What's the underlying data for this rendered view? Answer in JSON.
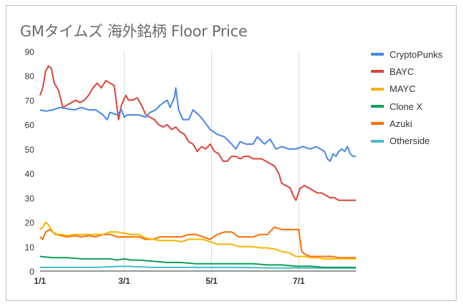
{
  "chart_data": {
    "type": "line",
    "title": "GMタイムズ 海外銘柄 Floor Price",
    "xlabel": "",
    "ylabel": "",
    "ylim": [
      0,
      90
    ],
    "y_ticks": [
      0,
      10,
      20,
      30,
      40,
      50,
      60,
      70,
      80,
      90
    ],
    "x_ticks": [
      "1/1",
      "3/1",
      "5/1",
      "7/1"
    ],
    "x_domain_days": [
      1,
      222
    ],
    "grid": "vertical lines at month ticks",
    "legend_position": "right",
    "series": [
      {
        "name": "CryptoPunks",
        "color": "#4a86e8",
        "points": [
          [
            1,
            66
          ],
          [
            5,
            65.5
          ],
          [
            10,
            66
          ],
          [
            15,
            67
          ],
          [
            20,
            66.5
          ],
          [
            25,
            66
          ],
          [
            30,
            67
          ],
          [
            35,
            66
          ],
          [
            40,
            66
          ],
          [
            45,
            64
          ],
          [
            48,
            62
          ],
          [
            50,
            65
          ],
          [
            55,
            64
          ],
          [
            58,
            66
          ],
          [
            60,
            63
          ],
          [
            62,
            64
          ],
          [
            66,
            64
          ],
          [
            70,
            64
          ],
          [
            75,
            63
          ],
          [
            78,
            65
          ],
          [
            82,
            66
          ],
          [
            85,
            68
          ],
          [
            90,
            70
          ],
          [
            92,
            67
          ],
          [
            95,
            71
          ],
          [
            96,
            75
          ],
          [
            98,
            66
          ],
          [
            101,
            62
          ],
          [
            105,
            62
          ],
          [
            108,
            66
          ],
          [
            112,
            64
          ],
          [
            115,
            62
          ],
          [
            120,
            58
          ],
          [
            125,
            56
          ],
          [
            130,
            55
          ],
          [
            135,
            52
          ],
          [
            138,
            50
          ],
          [
            141,
            53
          ],
          [
            145,
            52
          ],
          [
            150,
            52
          ],
          [
            153,
            55
          ],
          [
            158,
            52
          ],
          [
            162,
            54
          ],
          [
            166,
            50
          ],
          [
            170,
            51
          ],
          [
            175,
            50
          ],
          [
            180,
            50
          ],
          [
            185,
            51
          ],
          [
            190,
            50
          ],
          [
            194,
            51
          ],
          [
            200,
            49
          ],
          [
            202,
            46
          ],
          [
            204,
            45
          ],
          [
            206,
            48
          ],
          [
            208,
            47
          ],
          [
            210,
            49
          ],
          [
            212,
            50
          ],
          [
            214,
            49
          ],
          [
            216,
            51
          ],
          [
            218,
            48
          ],
          [
            220,
            47
          ],
          [
            222,
            47
          ]
        ]
      },
      {
        "name": "BAYC",
        "color": "#db4437",
        "points": [
          [
            1,
            72
          ],
          [
            3,
            75
          ],
          [
            5,
            82
          ],
          [
            7,
            84
          ],
          [
            9,
            83
          ],
          [
            11,
            77
          ],
          [
            14,
            74
          ],
          [
            17,
            67
          ],
          [
            20,
            68
          ],
          [
            23,
            69
          ],
          [
            26,
            70
          ],
          [
            29,
            69
          ],
          [
            32,
            70
          ],
          [
            35,
            72
          ],
          [
            38,
            75
          ],
          [
            41,
            77
          ],
          [
            44,
            75
          ],
          [
            47,
            78
          ],
          [
            50,
            77
          ],
          [
            53,
            76
          ],
          [
            56,
            62
          ],
          [
            58,
            68
          ],
          [
            61,
            72
          ],
          [
            63,
            70
          ],
          [
            66,
            70
          ],
          [
            69,
            71
          ],
          [
            72,
            68
          ],
          [
            75,
            64
          ],
          [
            78,
            63
          ],
          [
            81,
            62
          ],
          [
            84,
            60
          ],
          [
            87,
            59
          ],
          [
            90,
            60
          ],
          [
            93,
            58
          ],
          [
            96,
            59
          ],
          [
            99,
            57
          ],
          [
            102,
            56
          ],
          [
            105,
            53
          ],
          [
            108,
            52
          ],
          [
            111,
            49
          ],
          [
            114,
            51
          ],
          [
            117,
            50
          ],
          [
            120,
            52
          ],
          [
            123,
            49
          ],
          [
            126,
            48
          ],
          [
            129,
            45
          ],
          [
            132,
            45
          ],
          [
            135,
            47
          ],
          [
            138,
            47
          ],
          [
            141,
            46
          ],
          [
            144,
            47
          ],
          [
            147,
            47
          ],
          [
            150,
            46
          ],
          [
            153,
            46
          ],
          [
            156,
            46
          ],
          [
            159,
            45
          ],
          [
            162,
            44
          ],
          [
            165,
            43
          ],
          [
            168,
            40
          ],
          [
            170,
            36
          ],
          [
            173,
            35
          ],
          [
            176,
            34
          ],
          [
            178,
            31
          ],
          [
            180,
            29
          ],
          [
            183,
            34
          ],
          [
            186,
            35
          ],
          [
            189,
            34
          ],
          [
            192,
            33
          ],
          [
            195,
            32
          ],
          [
            198,
            32
          ],
          [
            201,
            31
          ],
          [
            204,
            30
          ],
          [
            207,
            30
          ],
          [
            210,
            29
          ],
          [
            213,
            29
          ],
          [
            216,
            29
          ],
          [
            219,
            29
          ],
          [
            222,
            29
          ]
        ]
      },
      {
        "name": "MAYC",
        "color": "#f4b400",
        "points": [
          [
            1,
            17
          ],
          [
            3,
            18
          ],
          [
            5,
            20
          ],
          [
            7,
            19
          ],
          [
            10,
            16
          ],
          [
            13,
            15
          ],
          [
            16,
            15
          ],
          [
            20,
            14.5
          ],
          [
            25,
            15
          ],
          [
            30,
            15
          ],
          [
            35,
            15
          ],
          [
            40,
            15
          ],
          [
            45,
            15
          ],
          [
            50,
            16
          ],
          [
            55,
            16
          ],
          [
            60,
            15.5
          ],
          [
            65,
            15
          ],
          [
            70,
            15
          ],
          [
            75,
            13.5
          ],
          [
            80,
            13
          ],
          [
            85,
            12.5
          ],
          [
            90,
            12.5
          ],
          [
            95,
            12.5
          ],
          [
            100,
            12
          ],
          [
            105,
            13
          ],
          [
            110,
            13
          ],
          [
            115,
            13
          ],
          [
            120,
            12
          ],
          [
            125,
            11
          ],
          [
            130,
            11
          ],
          [
            135,
            11
          ],
          [
            140,
            10
          ],
          [
            145,
            10
          ],
          [
            150,
            10
          ],
          [
            155,
            9.5
          ],
          [
            160,
            9.5
          ],
          [
            165,
            9
          ],
          [
            170,
            8
          ],
          [
            175,
            7.5
          ],
          [
            180,
            6
          ],
          [
            183,
            6
          ],
          [
            186,
            6
          ],
          [
            190,
            5.5
          ],
          [
            195,
            5.5
          ],
          [
            200,
            5
          ],
          [
            205,
            5
          ],
          [
            210,
            5
          ],
          [
            215,
            5
          ],
          [
            222,
            5
          ]
        ]
      },
      {
        "name": "Clone X",
        "color": "#0f9d58",
        "points": [
          [
            1,
            6
          ],
          [
            10,
            5.5
          ],
          [
            20,
            5.5
          ],
          [
            30,
            5
          ],
          [
            40,
            5
          ],
          [
            50,
            5
          ],
          [
            55,
            4.5
          ],
          [
            60,
            5
          ],
          [
            65,
            4.5
          ],
          [
            70,
            4.5
          ],
          [
            80,
            4
          ],
          [
            90,
            3.5
          ],
          [
            100,
            3.5
          ],
          [
            110,
            3
          ],
          [
            120,
            3
          ],
          [
            130,
            3
          ],
          [
            140,
            3
          ],
          [
            150,
            3
          ],
          [
            160,
            2.5
          ],
          [
            170,
            2.5
          ],
          [
            180,
            2
          ],
          [
            190,
            2
          ],
          [
            200,
            1.5
          ],
          [
            210,
            1.5
          ],
          [
            222,
            1.5
          ]
        ]
      },
      {
        "name": "Azuki",
        "color": "#ff6d01",
        "points": [
          [
            1,
            14
          ],
          [
            3,
            13
          ],
          [
            5,
            16
          ],
          [
            8,
            17
          ],
          [
            12,
            15
          ],
          [
            16,
            14.5
          ],
          [
            20,
            14
          ],
          [
            25,
            14.5
          ],
          [
            30,
            14
          ],
          [
            35,
            14.5
          ],
          [
            40,
            14
          ],
          [
            45,
            15
          ],
          [
            50,
            15
          ],
          [
            55,
            14
          ],
          [
            60,
            14
          ],
          [
            65,
            14
          ],
          [
            70,
            14
          ],
          [
            75,
            13
          ],
          [
            80,
            13
          ],
          [
            85,
            14
          ],
          [
            90,
            14
          ],
          [
            95,
            14
          ],
          [
            100,
            14
          ],
          [
            105,
            15
          ],
          [
            110,
            15
          ],
          [
            115,
            14
          ],
          [
            120,
            13
          ],
          [
            125,
            15
          ],
          [
            130,
            16
          ],
          [
            135,
            16
          ],
          [
            140,
            14
          ],
          [
            145,
            14
          ],
          [
            150,
            14
          ],
          [
            155,
            15
          ],
          [
            160,
            15
          ],
          [
            165,
            18
          ],
          [
            170,
            17
          ],
          [
            175,
            17
          ],
          [
            180,
            17
          ],
          [
            182,
            17
          ],
          [
            184,
            8
          ],
          [
            186,
            7
          ],
          [
            190,
            6
          ],
          [
            195,
            6
          ],
          [
            200,
            6
          ],
          [
            205,
            6
          ],
          [
            210,
            5.5
          ],
          [
            215,
            5.5
          ],
          [
            222,
            5.5
          ]
        ]
      },
      {
        "name": "Otherside",
        "color": "#46bdc6",
        "points": [
          [
            1,
            1.5
          ],
          [
            20,
            1.5
          ],
          [
            40,
            1.5
          ],
          [
            60,
            2
          ],
          [
            80,
            1.5
          ],
          [
            100,
            1.5
          ],
          [
            120,
            1.5
          ],
          [
            140,
            1.5
          ],
          [
            160,
            1.3
          ],
          [
            180,
            1.3
          ],
          [
            200,
            1.2
          ],
          [
            222,
            1.2
          ]
        ]
      }
    ]
  }
}
